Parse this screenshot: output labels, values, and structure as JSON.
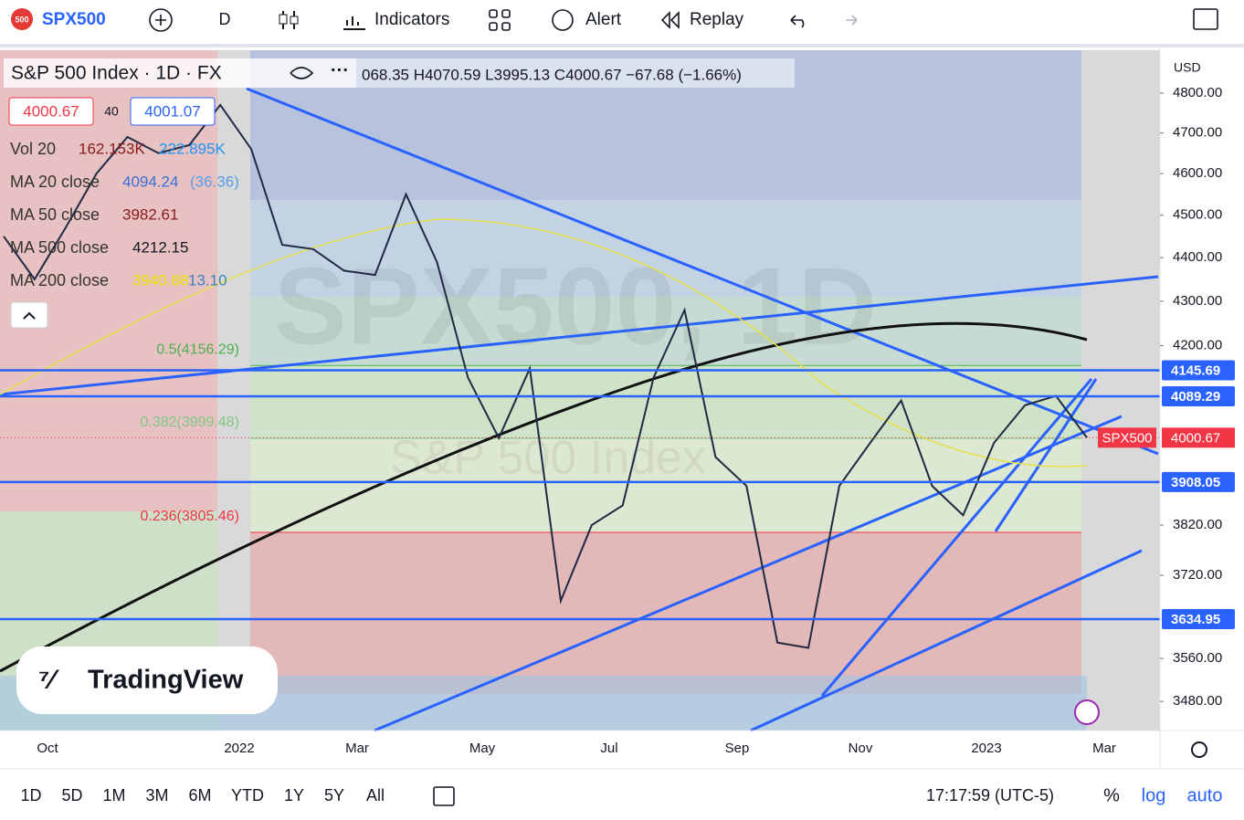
{
  "toolbar": {
    "badge": "500",
    "symbol": "SPX500",
    "interval": "D",
    "indicators": "Indicators",
    "alert": "Alert",
    "replay": "Replay"
  },
  "legend": {
    "title": "S&P 500 Index · 1D · FX",
    "ohlc": "068.35 H4070.59 L3995.13 C4000.67 −67.68 (−1.66%)",
    "bid": "4000.67",
    "spread": "40",
    "ask": "4001.07",
    "rows": [
      {
        "name": "Vol 20",
        "values": [
          "162.153K",
          "222.895K"
        ]
      },
      {
        "name": "MA 20 close",
        "values": [
          "4094.24",
          "(36.36)"
        ]
      },
      {
        "name": "MA 50 close",
        "values": [
          "3982.61"
        ]
      },
      {
        "name": "MA 500 close",
        "values": [
          "4212.15"
        ]
      },
      {
        "name": "MA 200 close",
        "values": [
          "3940.88",
          "13.10"
        ]
      }
    ]
  },
  "watermark": {
    "symbol": "SPX500, 1D",
    "name": "S&P 500 Index"
  },
  "logo": "TradingView",
  "chart_data": {
    "type": "line",
    "log_scale": true,
    "currency": "USD",
    "color": "#1f2a44",
    "values": [
      4450,
      4350,
      4470,
      4600,
      4690,
      4650,
      4670,
      4770,
      4660,
      4430,
      4420,
      4370,
      4360,
      4550,
      4390,
      4130,
      4000,
      4150,
      3670,
      3820,
      3860,
      4130,
      4280,
      3960,
      3900,
      3590,
      3580,
      3900,
      3990,
      4080,
      3900,
      3840,
      3990,
      4070,
      4090,
      4000.67
    ],
    "ylim": [
      3427,
      4910
    ],
    "yticks": [
      {
        "value": 4800,
        "label": "4800.00"
      },
      {
        "value": 4700,
        "label": "4700.00"
      },
      {
        "value": 4600,
        "label": "4600.00"
      },
      {
        "value": 4500,
        "label": "4500.00"
      },
      {
        "value": 4400,
        "label": "4400.00"
      },
      {
        "value": 4300,
        "label": "4300.00"
      },
      {
        "value": 4200,
        "label": "4200.00"
      },
      {
        "value": 3820,
        "label": "3820.00"
      },
      {
        "value": 3720,
        "label": "3720.00"
      },
      {
        "value": 3560,
        "label": "3560.00"
      },
      {
        "value": 3480,
        "label": "3480.00"
      }
    ],
    "levels": [
      {
        "value": 4145.69,
        "label": "4145.69"
      },
      {
        "value": 4089.29,
        "label": "4089.29"
      },
      {
        "value": 3908.05,
        "label": "3908.05"
      },
      {
        "value": 3634.95,
        "label": "3634.95"
      }
    ],
    "level_color": "#2962ff",
    "last": {
      "name": "SPX500",
      "value": 4000.67,
      "label": "4000.67",
      "color": "#f23645"
    },
    "fib": [
      {
        "value": 4156.29,
        "label": "0.5(4156.29)",
        "color": "#4caf50"
      },
      {
        "value": 3999.48,
        "label": "0.382(3999.48)",
        "color": "#81c784"
      },
      {
        "value": 3805.46,
        "label": "0.236(3805.46)",
        "color": "#f23645"
      }
    ],
    "x_labels": [
      "Oct",
      "2022",
      "Mar",
      "May",
      "Jul",
      "Sep",
      "Nov",
      "2023",
      "Mar"
    ]
  },
  "bottom": {
    "ranges": [
      "1D",
      "5D",
      "1M",
      "3M",
      "6M",
      "YTD",
      "1Y",
      "5Y",
      "All"
    ],
    "time": "17:17:59 (UTC-5)",
    "percent": "%",
    "log": "log",
    "auto": "auto"
  }
}
